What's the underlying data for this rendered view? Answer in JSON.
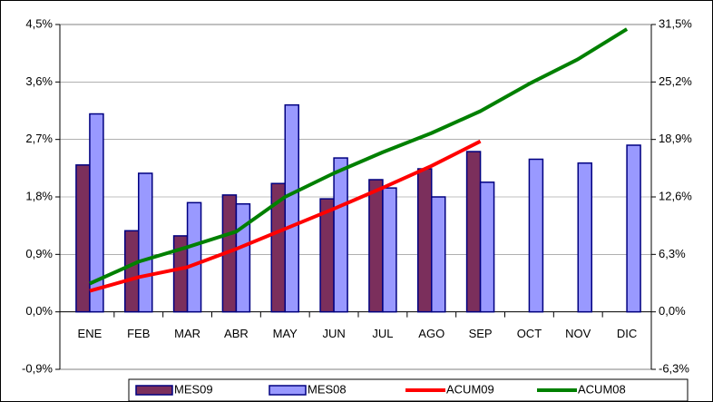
{
  "chart_data": {
    "type": "bar",
    "categories": [
      "ENE",
      "FEB",
      "MAR",
      "ABR",
      "MAY",
      "JUN",
      "JUL",
      "AGO",
      "SEP",
      "OCT",
      "NOV",
      "DIC"
    ],
    "series": [
      {
        "name": "MES09",
        "type": "bar",
        "color": "#7b2f5c",
        "values": [
          2.3,
          1.27,
          1.19,
          1.83,
          2.01,
          1.77,
          2.07,
          2.24,
          2.51,
          null,
          null,
          null
        ]
      },
      {
        "name": "MES08",
        "type": "bar",
        "color": "#9999ff",
        "values": [
          3.1,
          2.17,
          1.71,
          1.69,
          3.24,
          2.41,
          1.94,
          1.8,
          2.03,
          2.39,
          2.33,
          2.61
        ]
      },
      {
        "name": "ACUM09",
        "type": "line",
        "axis": "y2",
        "color": "#ff0000",
        "values": [
          2.3,
          3.8,
          4.9,
          6.9,
          9.1,
          11.3,
          13.6,
          16.0,
          18.7,
          null,
          null,
          null
        ]
      },
      {
        "name": "ACUM08",
        "type": "line",
        "axis": "y2",
        "color": "#008000",
        "values": [
          3.1,
          5.5,
          7.1,
          8.8,
          12.6,
          15.2,
          17.5,
          19.6,
          22.0,
          25.0,
          27.7,
          31.0
        ]
      }
    ],
    "ylim": [
      -0.9,
      4.5
    ],
    "yticks": [
      {
        "value": -0.9,
        "label": "-0,9%"
      },
      {
        "value": 0,
        "label": "0,0%"
      },
      {
        "value": 0.9,
        "label": "0,9%"
      },
      {
        "value": 1.8,
        "label": "1,8%"
      },
      {
        "value": 2.7,
        "label": "2,7%"
      },
      {
        "value": 3.6,
        "label": "3,6%"
      },
      {
        "value": 4.5,
        "label": "4,5%"
      }
    ],
    "y2lim": [
      -6.3,
      31.5
    ],
    "y2ticks": [
      {
        "value": -6.3,
        "label": "-6,3%"
      },
      {
        "value": 0,
        "label": "0,0%"
      },
      {
        "value": 6.3,
        "label": "6,3%"
      },
      {
        "value": 12.6,
        "label": "12,6%"
      },
      {
        "value": 18.9,
        "label": "18,9%"
      },
      {
        "value": 25.2,
        "label": "25,2%"
      },
      {
        "value": 31.5,
        "label": "31,5%"
      }
    ],
    "legend": "bottom"
  }
}
